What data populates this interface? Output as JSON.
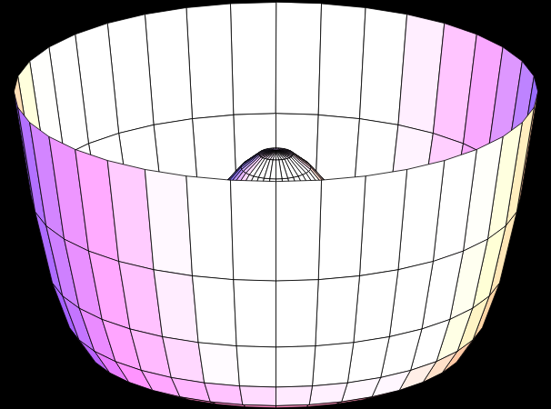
{
  "chart_data": {
    "type": "surface",
    "tick_labels": false,
    "r": [
      0,
      0.1,
      0.2,
      0.3,
      0.4,
      0.5,
      0.6,
      0.7,
      0.8,
      0.9,
      1.0,
      1.1,
      1.2,
      1.3,
      1.4,
      1.5
    ],
    "z": [
      1.2,
      1.18,
      1.1,
      0.98,
      0.83,
      0.66,
      0.48,
      0.3,
      0.15,
      0.05,
      0,
      0.05,
      0.2,
      0.48,
      0.92,
      1.56
    ]
  }
}
